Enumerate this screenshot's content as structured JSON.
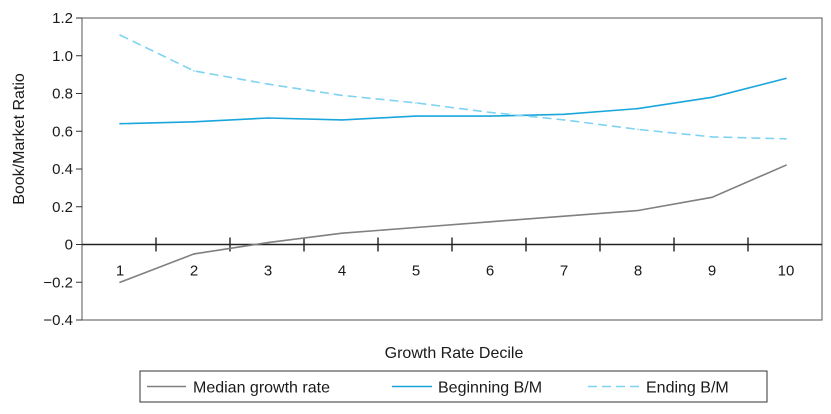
{
  "chart_data": {
    "type": "line",
    "title": "",
    "xlabel": "Growth Rate Decile",
    "ylabel": "Book/Market Ratio",
    "x": [
      1,
      2,
      3,
      4,
      5,
      6,
      7,
      8,
      9,
      10
    ],
    "x_tick_labels": [
      "1",
      "2",
      "3",
      "4",
      "5",
      "6",
      "7",
      "8",
      "9",
      "10"
    ],
    "ylim": [
      -0.4,
      1.2
    ],
    "y_ticks": [
      -0.4,
      -0.2,
      0,
      0.2,
      0.4,
      0.6,
      0.8,
      1.0,
      1.2
    ],
    "y_tick_labels": [
      "−0.4",
      "−0.2",
      "0",
      "0.2",
      "0.4",
      "0.6",
      "0.8",
      "1.0",
      "1.2"
    ],
    "grid": false,
    "legend_position": "bottom",
    "series": [
      {
        "name": "Median growth rate",
        "color": "#808080",
        "dash": "solid",
        "values": [
          -0.2,
          -0.05,
          0.01,
          0.06,
          0.09,
          0.12,
          0.15,
          0.18,
          0.25,
          0.42
        ]
      },
      {
        "name": "Beginning B/M",
        "color": "#1aa6dc",
        "dash": "solid",
        "values": [
          0.64,
          0.65,
          0.67,
          0.66,
          0.68,
          0.68,
          0.69,
          0.72,
          0.78,
          0.88
        ]
      },
      {
        "name": "Ending B/M",
        "color": "#7fd3f0",
        "dash": "dashed",
        "values": [
          1.11,
          0.92,
          0.85,
          0.79,
          0.75,
          0.7,
          0.66,
          0.61,
          0.57,
          0.56
        ]
      }
    ]
  }
}
